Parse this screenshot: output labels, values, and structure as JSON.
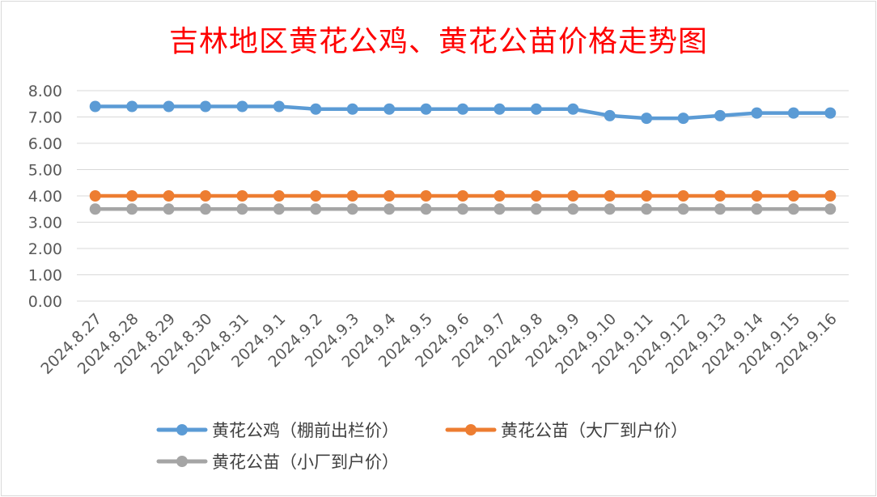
{
  "chart_data": {
    "type": "line",
    "title": "吉林地区黄花公鸡、黄花公苗价格走势图",
    "categories": [
      "2024.8.27",
      "2024.8.28",
      "2024.8.29",
      "2024.8.30",
      "2024.8.31",
      "2024.9.1",
      "2024.9.2",
      "2024.9.3",
      "2024.9.4",
      "2024.9.5",
      "2024.9.6",
      "2024.9.7",
      "2024.9.8",
      "2024.9.9",
      "2024.9.10",
      "2024.9.11",
      "2024.9.12",
      "2024.9.13",
      "2024.9.14",
      "2024.9.15",
      "2024.9.16"
    ],
    "ylim": [
      0,
      8
    ],
    "yticks": [
      "0.00",
      "1.00",
      "2.00",
      "3.00",
      "4.00",
      "5.00",
      "6.00",
      "7.00",
      "8.00"
    ],
    "grid": true,
    "legend_position": "bottom",
    "series": [
      {
        "name": "黄花公鸡（棚前出栏价）",
        "color": "#5b9bd5",
        "values": [
          7.4,
          7.4,
          7.4,
          7.4,
          7.4,
          7.4,
          7.3,
          7.3,
          7.3,
          7.3,
          7.3,
          7.3,
          7.3,
          7.3,
          7.05,
          6.95,
          6.95,
          7.05,
          7.15,
          7.15,
          7.15
        ]
      },
      {
        "name": "黄花公苗（大厂到户价）",
        "color": "#ed7d31",
        "values": [
          4.0,
          4.0,
          4.0,
          4.0,
          4.0,
          4.0,
          4.0,
          4.0,
          4.0,
          4.0,
          4.0,
          4.0,
          4.0,
          4.0,
          4.0,
          4.0,
          4.0,
          4.0,
          4.0,
          4.0,
          4.0
        ]
      },
      {
        "name": "黄花公苗（小厂到户价）",
        "color": "#a5a5a5",
        "values": [
          3.5,
          3.5,
          3.5,
          3.5,
          3.5,
          3.5,
          3.5,
          3.5,
          3.5,
          3.5,
          3.5,
          3.5,
          3.5,
          3.5,
          3.5,
          3.5,
          3.5,
          3.5,
          3.5,
          3.5,
          3.5
        ]
      }
    ]
  }
}
